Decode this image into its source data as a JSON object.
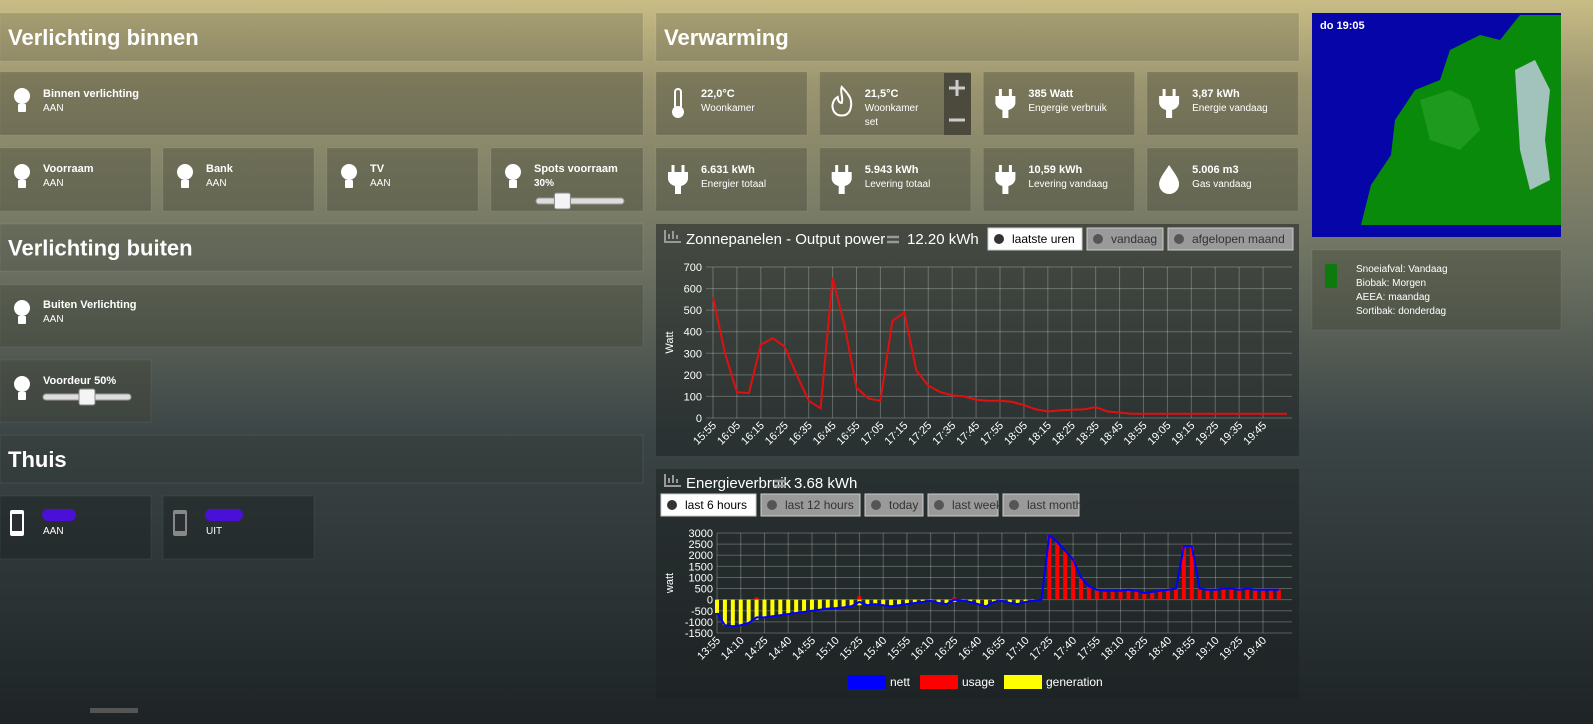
{
  "lighting_inside": {
    "title": "Verlichting binnen",
    "tiles": [
      {
        "name": "Binnen verlichting",
        "status": "AAN"
      },
      {
        "name": "Voorraam",
        "status": "AAN"
      },
      {
        "name": "Bank",
        "status": "AAN"
      },
      {
        "name": "TV",
        "status": "AAN"
      },
      {
        "name": "Spots voorraam",
        "status": "30%",
        "slider": 30
      }
    ]
  },
  "lighting_outside": {
    "title": "Verlichting buiten",
    "tiles": [
      {
        "name": "Buiten Verlichting",
        "status": "AAN"
      },
      {
        "name": "Voordeur 50%",
        "slider": 50
      }
    ]
  },
  "home": {
    "title": "Thuis",
    "tiles": [
      {
        "status": "AAN"
      },
      {
        "status": "UIT"
      }
    ]
  },
  "heating": {
    "title": "Verwarming",
    "tiles": [
      {
        "value": "22,0°C",
        "label": "Woonkamer"
      },
      {
        "value": "21,5°C",
        "label": "Woonkamer",
        "extra": "set"
      },
      {
        "value": "385 Watt",
        "label": "Engergie verbruik"
      },
      {
        "value": "3,87 kWh",
        "label": "Energie vandaag"
      },
      {
        "value": "6.631 kWh",
        "label": "Energier totaal"
      },
      {
        "value": "5.943 kWh",
        "label": "Levering totaal"
      },
      {
        "value": "10,59 kWh",
        "label": "Levering vandaag"
      },
      {
        "value": "5.006 m3",
        "label": "Gas vandaag"
      }
    ]
  },
  "weather": {
    "time": "do 19:05"
  },
  "waste": {
    "lines": [
      "Snoeiafval: Vandaag",
      "Biobak: Morgen",
      "AEEA: maandag",
      "Sortibak: donderdag"
    ]
  },
  "solar_chart": {
    "type": "line",
    "title": "Zonnepanelen - Output power",
    "total": "12.20 kWh",
    "buttons": [
      "laatste uren",
      "vandaag",
      "afgelopen maand"
    ],
    "active_button": 0,
    "ylabel": "Watt",
    "color": "#e01010",
    "grid": true,
    "ylim": [
      0,
      700
    ],
    "yticks": [
      0,
      100,
      200,
      300,
      400,
      500,
      600,
      700
    ],
    "categories": [
      "15:55",
      null,
      "16:05",
      null,
      "16:15",
      null,
      "16:25",
      null,
      "16:35",
      null,
      "16:45",
      null,
      "16:55",
      null,
      "17:05",
      null,
      "17:15",
      null,
      "17:25",
      null,
      "17:35",
      null,
      "17:45",
      null,
      "17:55",
      null,
      "18:05",
      null,
      "18:15",
      null,
      "18:25",
      null,
      "18:35",
      null,
      "18:45",
      null,
      "18:55",
      null,
      "19:05",
      null,
      "19:15",
      null,
      "19:25",
      null,
      "19:35",
      null,
      "19:45",
      null,
      null
    ],
    "values": [
      560,
      300,
      120,
      115,
      340,
      370,
      330,
      200,
      80,
      45,
      650,
      430,
      140,
      90,
      80,
      450,
      490,
      220,
      150,
      120,
      105,
      100,
      85,
      80,
      80,
      75,
      60,
      40,
      30,
      35,
      38,
      40,
      50,
      30,
      25,
      20,
      20,
      20,
      20,
      20,
      20,
      20,
      20,
      20,
      20,
      20,
      20,
      20,
      20
    ]
  },
  "energy_chart": {
    "type": "bar",
    "title": "Energieverbruik",
    "total": "3.68 kWh",
    "buttons": [
      "last 6 hours",
      "last 12 hours",
      "today",
      "last week",
      "last month"
    ],
    "active_button": 0,
    "ylabel": "watt",
    "grid": true,
    "ylim": [
      -1500,
      3000
    ],
    "yticks": [
      -1500,
      -1000,
      -500,
      0,
      500,
      1000,
      1500,
      2000,
      2500,
      3000
    ],
    "categories": [
      "13:55",
      null,
      null,
      "14:10",
      null,
      null,
      "14:25",
      null,
      null,
      "14:40",
      null,
      null,
      "14:55",
      null,
      null,
      "15:10",
      null,
      null,
      "15:25",
      null,
      null,
      "15:40",
      null,
      null,
      "15:55",
      null,
      null,
      "16:10",
      null,
      null,
      "16:25",
      null,
      null,
      "16:40",
      null,
      null,
      "16:55",
      null,
      null,
      "17:10",
      null,
      null,
      "17:25",
      null,
      null,
      "17:40",
      null,
      null,
      "17:55",
      null,
      null,
      "18:10",
      null,
      null,
      "18:25",
      null,
      null,
      "18:40",
      null,
      null,
      "18:55",
      null,
      null,
      "19:10",
      null,
      null,
      "19:25",
      null,
      null,
      "19:40",
      null,
      null
    ],
    "series": [
      {
        "name": "nett",
        "color": "#0000ff",
        "values": [
          -600,
          -1150,
          -1200,
          -1150,
          -1050,
          -800,
          -800,
          -750,
          -700,
          -650,
          -600,
          -550,
          -500,
          -450,
          -400,
          -380,
          -350,
          -300,
          -100,
          -250,
          -200,
          -250,
          -300,
          -250,
          -200,
          -150,
          -100,
          -50,
          -150,
          -200,
          0,
          -50,
          -100,
          -200,
          -300,
          -100,
          -50,
          -150,
          -200,
          -100,
          -50,
          0,
          2900,
          2600,
          2200,
          1800,
          1000,
          600,
          450,
          400,
          400,
          400,
          450,
          400,
          300,
          350,
          400,
          450,
          500,
          2400,
          2400,
          500,
          450,
          450,
          500,
          500,
          450,
          500,
          450,
          450,
          450,
          450
        ]
      },
      {
        "name": "usage",
        "color": "#ff0000",
        "values": [
          0,
          0,
          0,
          0,
          0,
          100,
          0,
          0,
          0,
          0,
          0,
          0,
          0,
          0,
          0,
          0,
          0,
          0,
          150,
          0,
          0,
          0,
          0,
          0,
          0,
          0,
          0,
          0,
          0,
          0,
          100,
          0,
          0,
          0,
          0,
          0,
          0,
          0,
          0,
          0,
          0,
          0,
          2900,
          2600,
          2200,
          1800,
          1000,
          600,
          450,
          400,
          400,
          400,
          450,
          400,
          300,
          350,
          400,
          450,
          500,
          2400,
          2400,
          500,
          450,
          450,
          500,
          500,
          450,
          500,
          450,
          450,
          450,
          450
        ]
      },
      {
        "name": "generation",
        "color": "#ffff00",
        "values": [
          -600,
          -1150,
          -1200,
          -1150,
          -1050,
          -900,
          -800,
          -750,
          -700,
          -650,
          -600,
          -550,
          -500,
          -450,
          -400,
          -380,
          -350,
          -300,
          -250,
          -250,
          -200,
          -250,
          -300,
          -250,
          -200,
          -150,
          -100,
          -50,
          -150,
          -200,
          -100,
          -50,
          -100,
          -200,
          -300,
          -100,
          -50,
          -150,
          -200,
          -100,
          -50,
          0,
          0,
          0,
          0,
          0,
          0,
          0,
          0,
          0,
          0,
          0,
          0,
          0,
          0,
          0,
          0,
          0,
          0,
          0,
          0,
          0,
          0,
          0,
          0,
          0,
          0,
          0,
          0,
          0,
          0,
          0
        ]
      }
    ]
  }
}
